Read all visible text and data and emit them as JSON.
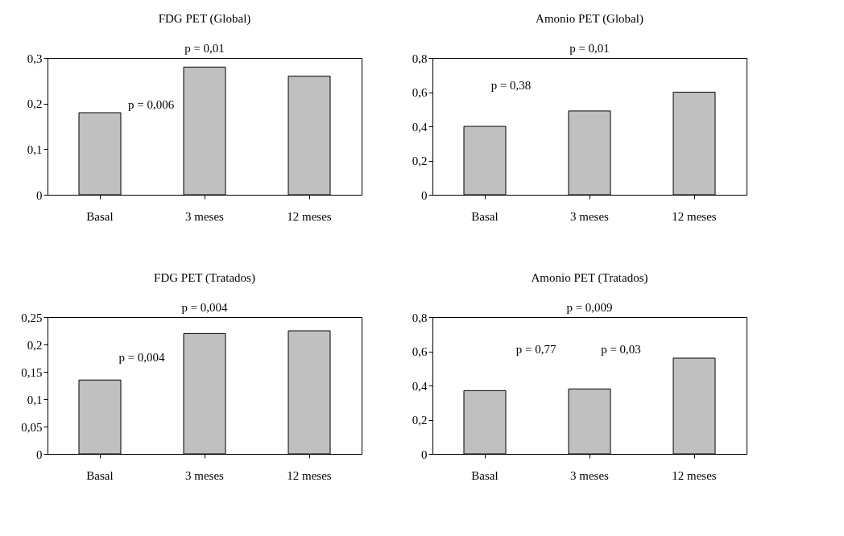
{
  "chart_data": [
    {
      "type": "bar",
      "title": "FDG PET (Global)",
      "categories": [
        "Basal",
        "3 meses",
        "12 meses"
      ],
      "values": [
        0.18,
        0.28,
        0.26
      ],
      "color": "#c0c0c0",
      "ylim": [
        0,
        0.3
      ],
      "yticks": [
        {
          "value": 0,
          "label": "0"
        },
        {
          "value": 0.1,
          "label": "0,1"
        },
        {
          "value": 0.2,
          "label": "0,2"
        },
        {
          "value": 0.3,
          "label": "0,3"
        }
      ],
      "grid": false,
      "annotations": [
        "p = 0,01",
        "p = 0,006"
      ]
    },
    {
      "type": "bar",
      "title": "Amonio PET (Global)",
      "categories": [
        "Basal",
        "3 meses",
        "12 meses"
      ],
      "values": [
        0.4,
        0.49,
        0.6
      ],
      "color": "#c0c0c0",
      "ylim": [
        0,
        0.8
      ],
      "yticks": [
        {
          "value": 0,
          "label": "0"
        },
        {
          "value": 0.2,
          "label": "0,2"
        },
        {
          "value": 0.4,
          "label": "0,4"
        },
        {
          "value": 0.6,
          "label": "0,6"
        },
        {
          "value": 0.8,
          "label": "0,8"
        }
      ],
      "grid": false,
      "annotations": [
        "p = 0,01",
        "p = 0,38"
      ]
    },
    {
      "type": "bar",
      "title": "FDG PET (Tratados)",
      "categories": [
        "Basal",
        "3 meses",
        "12 meses"
      ],
      "values": [
        0.135,
        0.22,
        0.225
      ],
      "color": "#c0c0c0",
      "ylim": [
        0,
        0.25
      ],
      "yticks": [
        {
          "value": 0,
          "label": "0"
        },
        {
          "value": 0.05,
          "label": "0,05"
        },
        {
          "value": 0.1,
          "label": "0,1"
        },
        {
          "value": 0.15,
          "label": "0,15"
        },
        {
          "value": 0.2,
          "label": "0,2"
        },
        {
          "value": 0.25,
          "label": "0,25"
        }
      ],
      "grid": false,
      "annotations": [
        "p = 0,004",
        "p = 0,004"
      ]
    },
    {
      "type": "bar",
      "title": "Amonio PET (Tratados)",
      "categories": [
        "Basal",
        "3 meses",
        "12 meses"
      ],
      "values": [
        0.37,
        0.38,
        0.56
      ],
      "color": "#c0c0c0",
      "ylim": [
        0,
        0.8
      ],
      "yticks": [
        {
          "value": 0,
          "label": "0"
        },
        {
          "value": 0.2,
          "label": "0,2"
        },
        {
          "value": 0.4,
          "label": "0,4"
        },
        {
          "value": 0.6,
          "label": "0,6"
        },
        {
          "value": 0.8,
          "label": "0,8"
        }
      ],
      "grid": false,
      "annotations": [
        "p = 0,009",
        "p = 0,77",
        "p = 0,03"
      ]
    }
  ]
}
